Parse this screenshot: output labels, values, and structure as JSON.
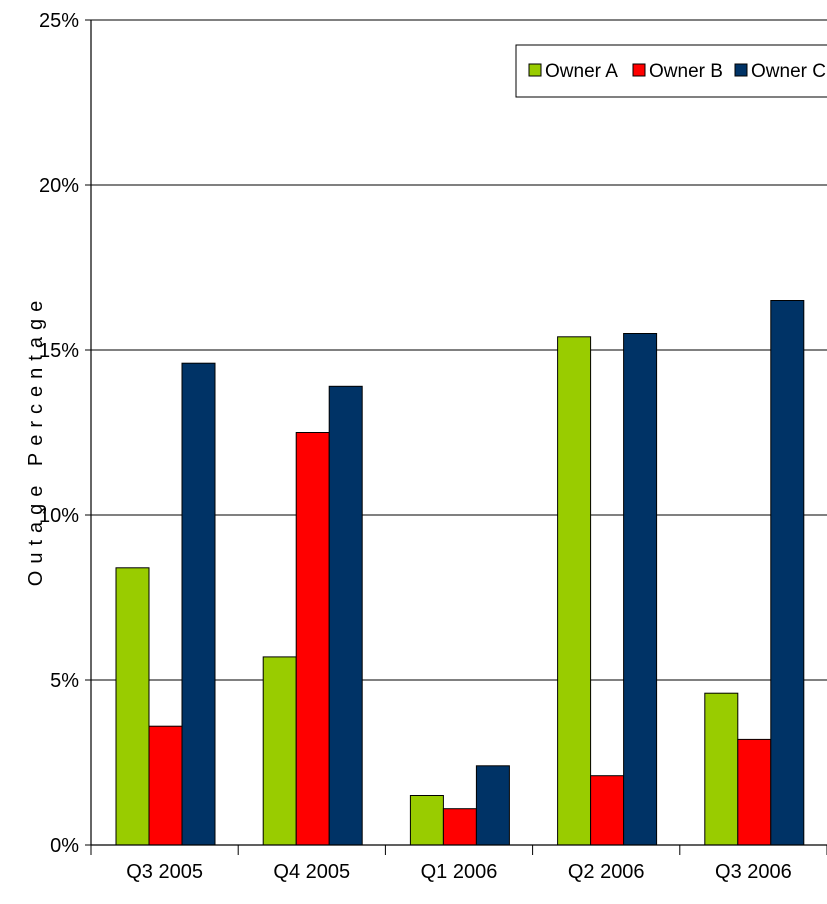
{
  "chart_data": {
    "type": "bar",
    "title": "",
    "xlabel": "",
    "ylabel": "Outage Percentage",
    "ylim": [
      0,
      25
    ],
    "yticks": [
      "0%",
      "5%",
      "10%",
      "15%",
      "20%",
      "25%"
    ],
    "ytick_values": [
      0,
      5,
      10,
      15,
      20,
      25
    ],
    "grid": "horizontal",
    "legend_position": "top-right",
    "categories": [
      "Q3 2005",
      "Q4 2005",
      "Q1 2006",
      "Q2 2006",
      "Q3 2006"
    ],
    "series": [
      {
        "name": "Owner A",
        "color": "#99cc00",
        "values": [
          8.4,
          5.7,
          1.5,
          15.4,
          4.6
        ]
      },
      {
        "name": "Owner B",
        "color": "#ff0000",
        "values": [
          3.6,
          12.5,
          1.1,
          2.1,
          3.2
        ]
      },
      {
        "name": "Owner C",
        "color": "#003366",
        "values": [
          14.6,
          13.9,
          2.4,
          15.5,
          16.5
        ]
      }
    ]
  }
}
